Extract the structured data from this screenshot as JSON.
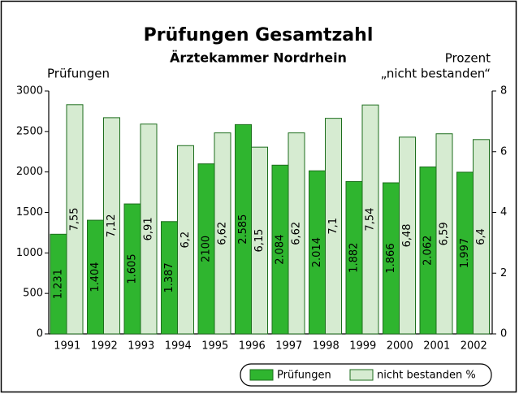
{
  "chart_data": {
    "type": "bar",
    "title": "Prüfungen Gesamtzahl",
    "subtitle": "Ärztekammer Nordrhein",
    "y_label": "Prüfungen",
    "y2_label": [
      "Prozent",
      "„nicht bestanden“"
    ],
    "categories": [
      "1991",
      "1992",
      "1993",
      "1994",
      "1995",
      "1996",
      "1997",
      "1998",
      "1999",
      "2000",
      "2001",
      "2002"
    ],
    "series": [
      {
        "name": "Prüfungen",
        "color": "#2fb52f",
        "values": [
          1231,
          1404,
          1605,
          1387,
          2100,
          2585,
          2084,
          2014,
          1882,
          1866,
          2062,
          1997
        ],
        "value_labels": [
          "1.231",
          "1.404",
          "1.605",
          "1.387",
          "2100",
          "2.585",
          "2.084",
          "2.014",
          "1.882",
          "1.866",
          "2.062",
          "1.997"
        ]
      },
      {
        "name": "nicht bestanden %",
        "color": "#d6ebd1",
        "axis": "y2",
        "values": [
          7.55,
          7.12,
          6.91,
          6.2,
          6.62,
          6.15,
          6.62,
          7.1,
          7.54,
          6.48,
          6.59,
          6.4
        ],
        "value_labels": [
          "7,55",
          "7,12",
          "6,91",
          "6,2",
          "6,62",
          "6,15",
          "6,62",
          "7,1",
          "7,54",
          "6,48",
          "6,59",
          "6,4"
        ]
      }
    ],
    "ylim": [
      0,
      3000
    ],
    "yticks": [
      0,
      500,
      1000,
      1500,
      2000,
      2500,
      3000
    ],
    "y2lim": [
      0,
      8
    ],
    "y2ticks": [
      0,
      2,
      4,
      6,
      8
    ],
    "legend": "bottom-right"
  }
}
